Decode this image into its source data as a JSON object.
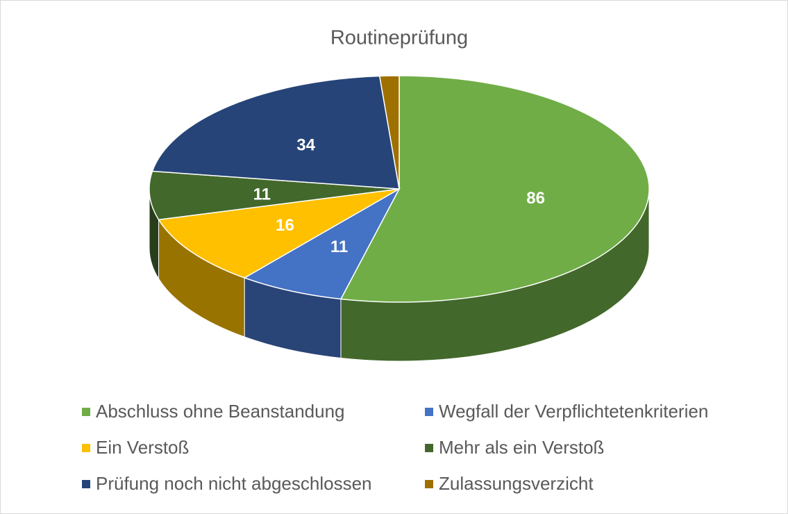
{
  "chart_data": {
    "type": "pie3d",
    "title": "Routineprüfung",
    "categories": [
      "Abschluss ohne Beanstandung",
      "Wegfall der Verpflichtetenkriterien",
      "Ein Verstoß",
      "Mehr als ein Verstoß",
      "Prüfung noch nicht abgeschlossen",
      "Zulassungsverzicht"
    ],
    "values": [
      86,
      11,
      16,
      11,
      34,
      2
    ],
    "value_labels": [
      "86",
      "11",
      "16",
      "11",
      "34",
      null
    ],
    "colors": [
      "#70ad47",
      "#4472c4",
      "#ffc000",
      "#43682b",
      "#264478",
      "#9e7000"
    ],
    "legend": "bottom"
  }
}
